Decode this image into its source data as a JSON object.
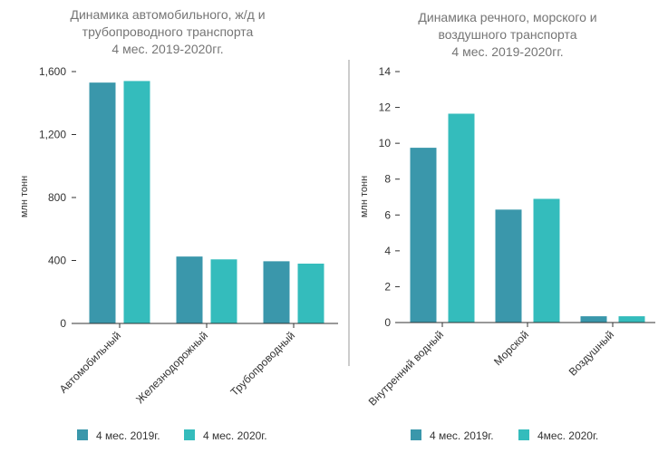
{
  "colors": {
    "series1": "#3a97ab",
    "series2": "#34bcbc",
    "text": "#333333",
    "title": "#757575",
    "axis": "#333333",
    "divider": "#999999"
  },
  "chart_data": [
    {
      "type": "bar",
      "title_lines": [
        "Динамика автомобильного, ж/д и",
        "трубопроводного транспорта",
        "4 мес. 2019-2020гг."
      ],
      "ylabel": "млн тонн",
      "xlabel": "",
      "ylim": [
        0,
        1600
      ],
      "yticks": [
        0,
        400,
        800,
        1200,
        1600
      ],
      "ytick_labels": [
        "0",
        "400",
        "800",
        "1,200",
        "1,600"
      ],
      "categories": [
        "Автомобильный",
        "Железнодорожный",
        "Трубопроводный"
      ],
      "series": [
        {
          "name": "4 мес. 2019г.",
          "values": [
            1530,
            425,
            395
          ]
        },
        {
          "name": "4 мес. 2020г.",
          "values": [
            1540,
            407,
            380
          ]
        }
      ],
      "grid": false,
      "legend": "bottom"
    },
    {
      "type": "bar",
      "title_lines": [
        "Динамика речного, морского и",
        "воздушного транспорта",
        "4 мес. 2019-2020гг."
      ],
      "ylabel": "млн тонн",
      "xlabel": "",
      "ylim": [
        0,
        14
      ],
      "yticks": [
        0,
        2,
        4,
        6,
        8,
        10,
        12,
        14
      ],
      "ytick_labels": [
        "0",
        "2",
        "4",
        "6",
        "8",
        "10",
        "12",
        "14"
      ],
      "categories": [
        "Внутренний водный",
        "Морской",
        "Воздушный"
      ],
      "series": [
        {
          "name": "4 мес. 2019г.",
          "values": [
            9.75,
            6.3,
            0.35
          ]
        },
        {
          "name": "4мес. 2020г.",
          "values": [
            11.65,
            6.9,
            0.35
          ]
        }
      ],
      "grid": false,
      "legend": "bottom"
    }
  ]
}
